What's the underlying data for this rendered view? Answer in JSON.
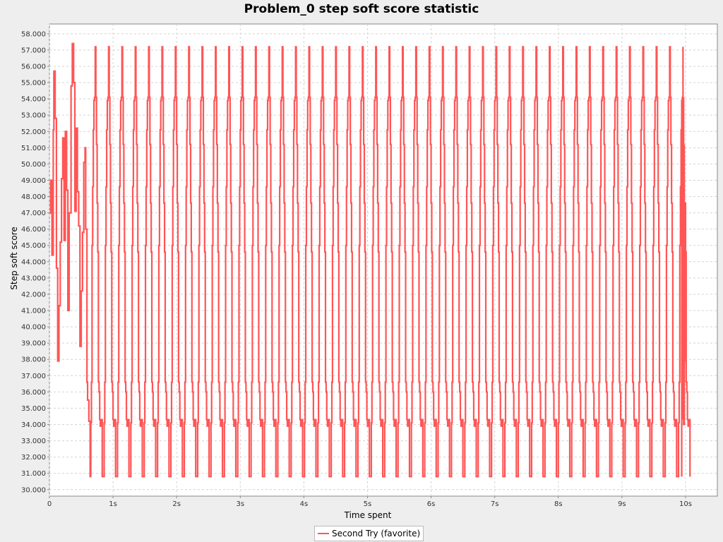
{
  "chart_data": {
    "type": "line",
    "title": "Problem_0 step soft score statistic",
    "xlabel": "Time spent",
    "ylabel": "Step soft score",
    "xlim": [
      0,
      10.5
    ],
    "ylim": [
      29.6,
      58.6
    ],
    "x_ticks": [
      0,
      1,
      2,
      3,
      4,
      5,
      6,
      7,
      8,
      9,
      10
    ],
    "x_tick_labels": [
      "0",
      "1s",
      "2s",
      "3s",
      "4s",
      "5s",
      "6s",
      "7s",
      "8s",
      "9s",
      "10s"
    ],
    "y_ticks": [
      30,
      31,
      32,
      33,
      34,
      35,
      36,
      37,
      38,
      39,
      40,
      41,
      42,
      43,
      44,
      45,
      46,
      47,
      48,
      49,
      50,
      51,
      52,
      53,
      54,
      55,
      56,
      57,
      58
    ],
    "y_tick_labels": [
      "30.000",
      "31.000",
      "32.000",
      "33.000",
      "34.000",
      "35.000",
      "36.000",
      "37.000",
      "38.000",
      "39.000",
      "40.000",
      "41.000",
      "42.000",
      "43.000",
      "44.000",
      "45.000",
      "46.000",
      "47.000",
      "48.000",
      "49.000",
      "50.000",
      "51.000",
      "52.000",
      "53.000",
      "54.000",
      "55.000",
      "56.000",
      "57.000",
      "58.000"
    ],
    "grid": true,
    "legend_position": "bottom",
    "series": [
      {
        "name": "Second Try (favorite)",
        "color": "#ff5555",
        "initial_points": [
          [
            0.0,
            47.0
          ],
          [
            0.02,
            49.0
          ],
          [
            0.04,
            44.4
          ],
          [
            0.06,
            52.1
          ],
          [
            0.07,
            55.7
          ],
          [
            0.09,
            52.8
          ],
          [
            0.11,
            43.6
          ],
          [
            0.13,
            37.9
          ],
          [
            0.15,
            41.3
          ],
          [
            0.17,
            45.2
          ],
          [
            0.19,
            49.1
          ],
          [
            0.21,
            51.6
          ],
          [
            0.23,
            45.3
          ],
          [
            0.25,
            52.0
          ],
          [
            0.27,
            48.4
          ],
          [
            0.29,
            41.0
          ],
          [
            0.31,
            47.0
          ],
          [
            0.34,
            54.8
          ],
          [
            0.36,
            57.4
          ],
          [
            0.38,
            55.0
          ],
          [
            0.4,
            47.1
          ],
          [
            0.42,
            52.2
          ],
          [
            0.44,
            48.3
          ],
          [
            0.46,
            46.2
          ],
          [
            0.48,
            38.8
          ],
          [
            0.5,
            42.2
          ],
          [
            0.52,
            45.8
          ],
          [
            0.54,
            50.1
          ],
          [
            0.56,
            51.0
          ],
          [
            0.57,
            46.0
          ],
          [
            0.59,
            36.6
          ],
          [
            0.6,
            35.5
          ],
          [
            0.62,
            34.2
          ],
          [
            0.64,
            30.8
          ]
        ],
        "cycle": {
          "start": 0.64,
          "period": 0.21,
          "count": 45,
          "steps": [
            [
              0.0,
              30.8
            ],
            [
              0.01,
              34.1
            ],
            [
              0.02,
              36.6
            ],
            [
              0.03,
              45.0
            ],
            [
              0.04,
              48.6
            ],
            [
              0.05,
              52.1
            ],
            [
              0.06,
              53.9
            ],
            [
              0.07,
              54.1
            ],
            [
              0.08,
              57.2
            ],
            [
              0.09,
              54.1
            ],
            [
              0.1,
              51.2
            ],
            [
              0.11,
              47.6
            ],
            [
              0.12,
              44.6
            ],
            [
              0.13,
              36.6
            ],
            [
              0.14,
              36.0
            ],
            [
              0.15,
              34.3
            ],
            [
              0.16,
              33.9
            ],
            [
              0.18,
              34.3
            ],
            [
              0.19,
              30.8
            ]
          ]
        },
        "end_points": [
          [
            9.94,
            30.8
          ],
          [
            9.95,
            34.3
          ],
          [
            9.96,
            36.5
          ],
          [
            9.97,
            34.0
          ],
          [
            9.98,
            37.9
          ]
        ]
      }
    ]
  }
}
